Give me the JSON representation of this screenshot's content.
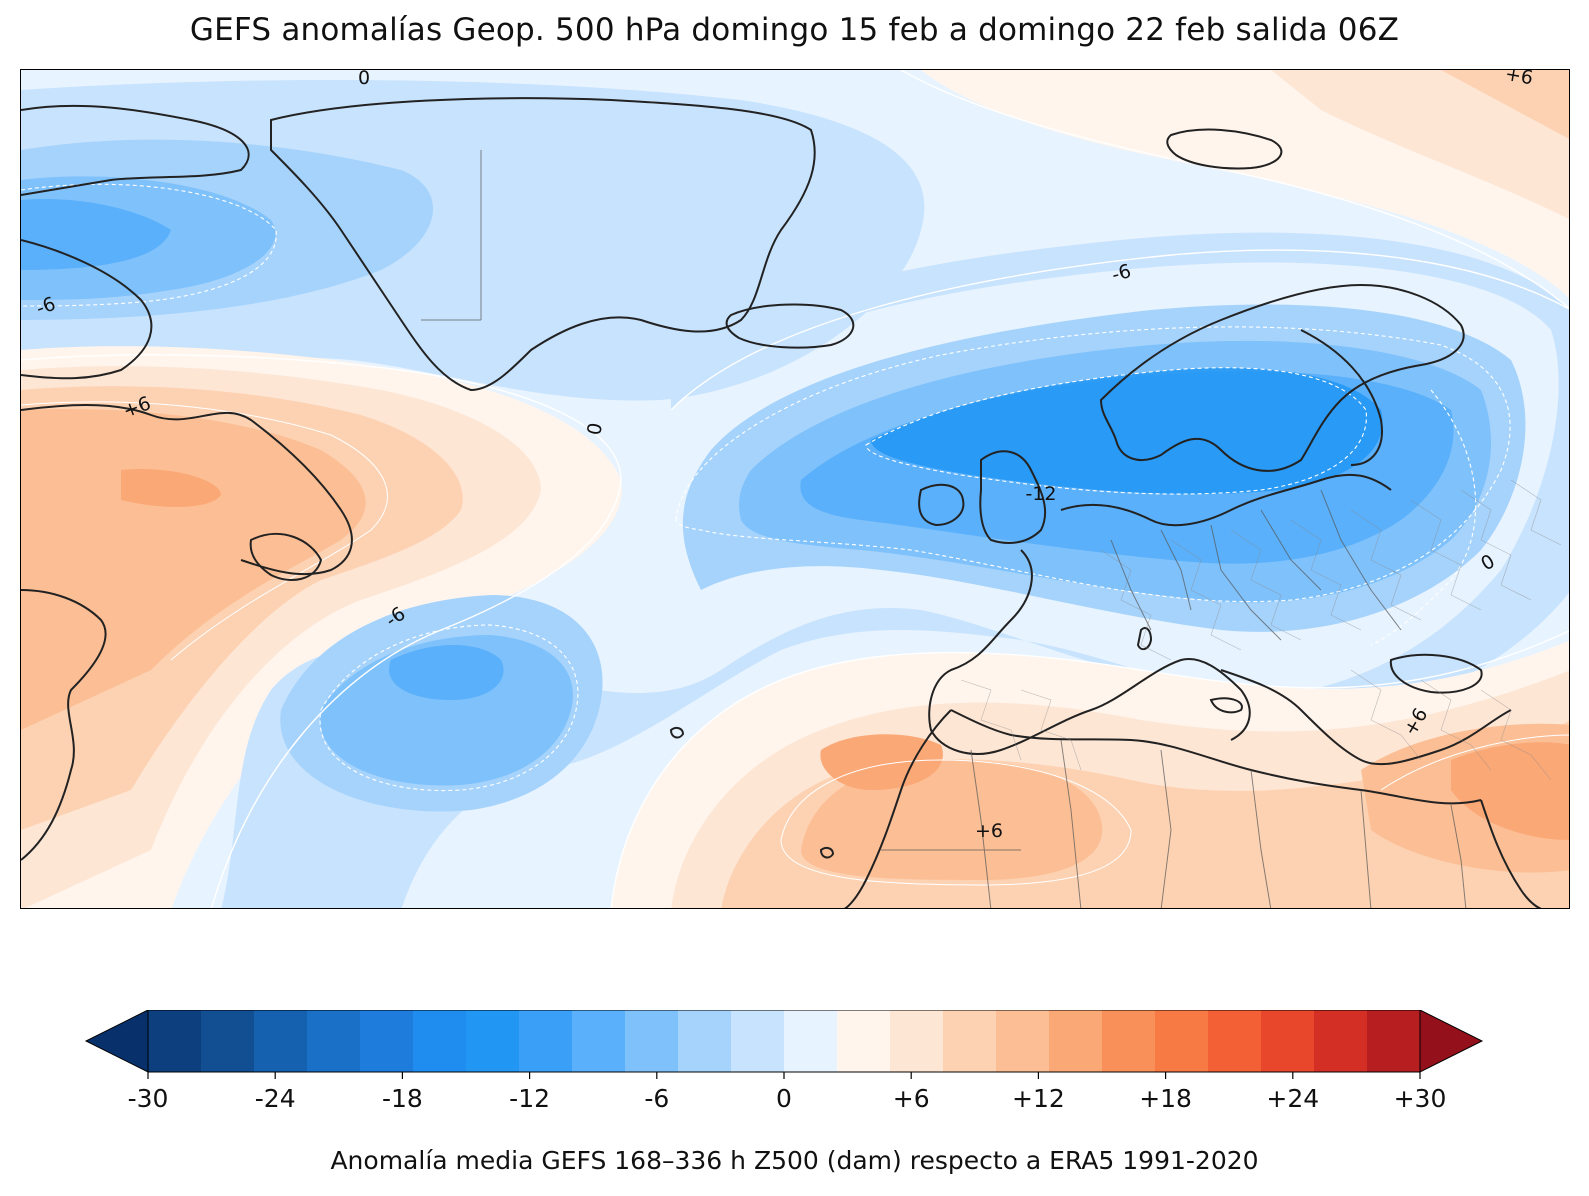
{
  "title": "GEFS anomalías Geop. 500 hPa domingo 15 feb a domingo 22 feb salida 06Z",
  "map": {
    "field": "Z500 anomaly",
    "units": "dam",
    "contour_labels": [
      "0",
      "+6",
      "-6",
      "-6",
      "+6",
      "0",
      "-6",
      "-6",
      "-12",
      "+6",
      "0",
      "+6",
      "+6"
    ],
    "features": [
      "anomaly-shading",
      "contour-lines",
      "coastlines",
      "country-borders",
      "region-borders"
    ]
  },
  "colorbar": {
    "min": -30,
    "max": 30,
    "step": 3,
    "extend": "both",
    "colors": [
      "#08306b",
      "#0d3f7e",
      "#124e92",
      "#1660b0",
      "#1a6fc7",
      "#1e7ddc",
      "#1f8cf0",
      "#2196f3",
      "#3aa0f7",
      "#5ab0fa",
      "#7fc1fb",
      "#a6d3fc",
      "#c8e3fd",
      "#e7f3fe",
      "#fff5ed",
      "#fee6d5",
      "#fdd2b3",
      "#fcbf95",
      "#fba877",
      "#f99059",
      "#f77a45",
      "#f46036",
      "#e8472c",
      "#d42f25",
      "#b71e20",
      "#94111b"
    ],
    "tick_labels": [
      "-30",
      "-24",
      "-18",
      "-12",
      "-6",
      "0",
      "+6",
      "+12",
      "+18",
      "+24",
      "+30"
    ],
    "label": "Anomalía media GEFS 168–336 h Z500 (dam) respecto a ERA5 1991-2020"
  }
}
